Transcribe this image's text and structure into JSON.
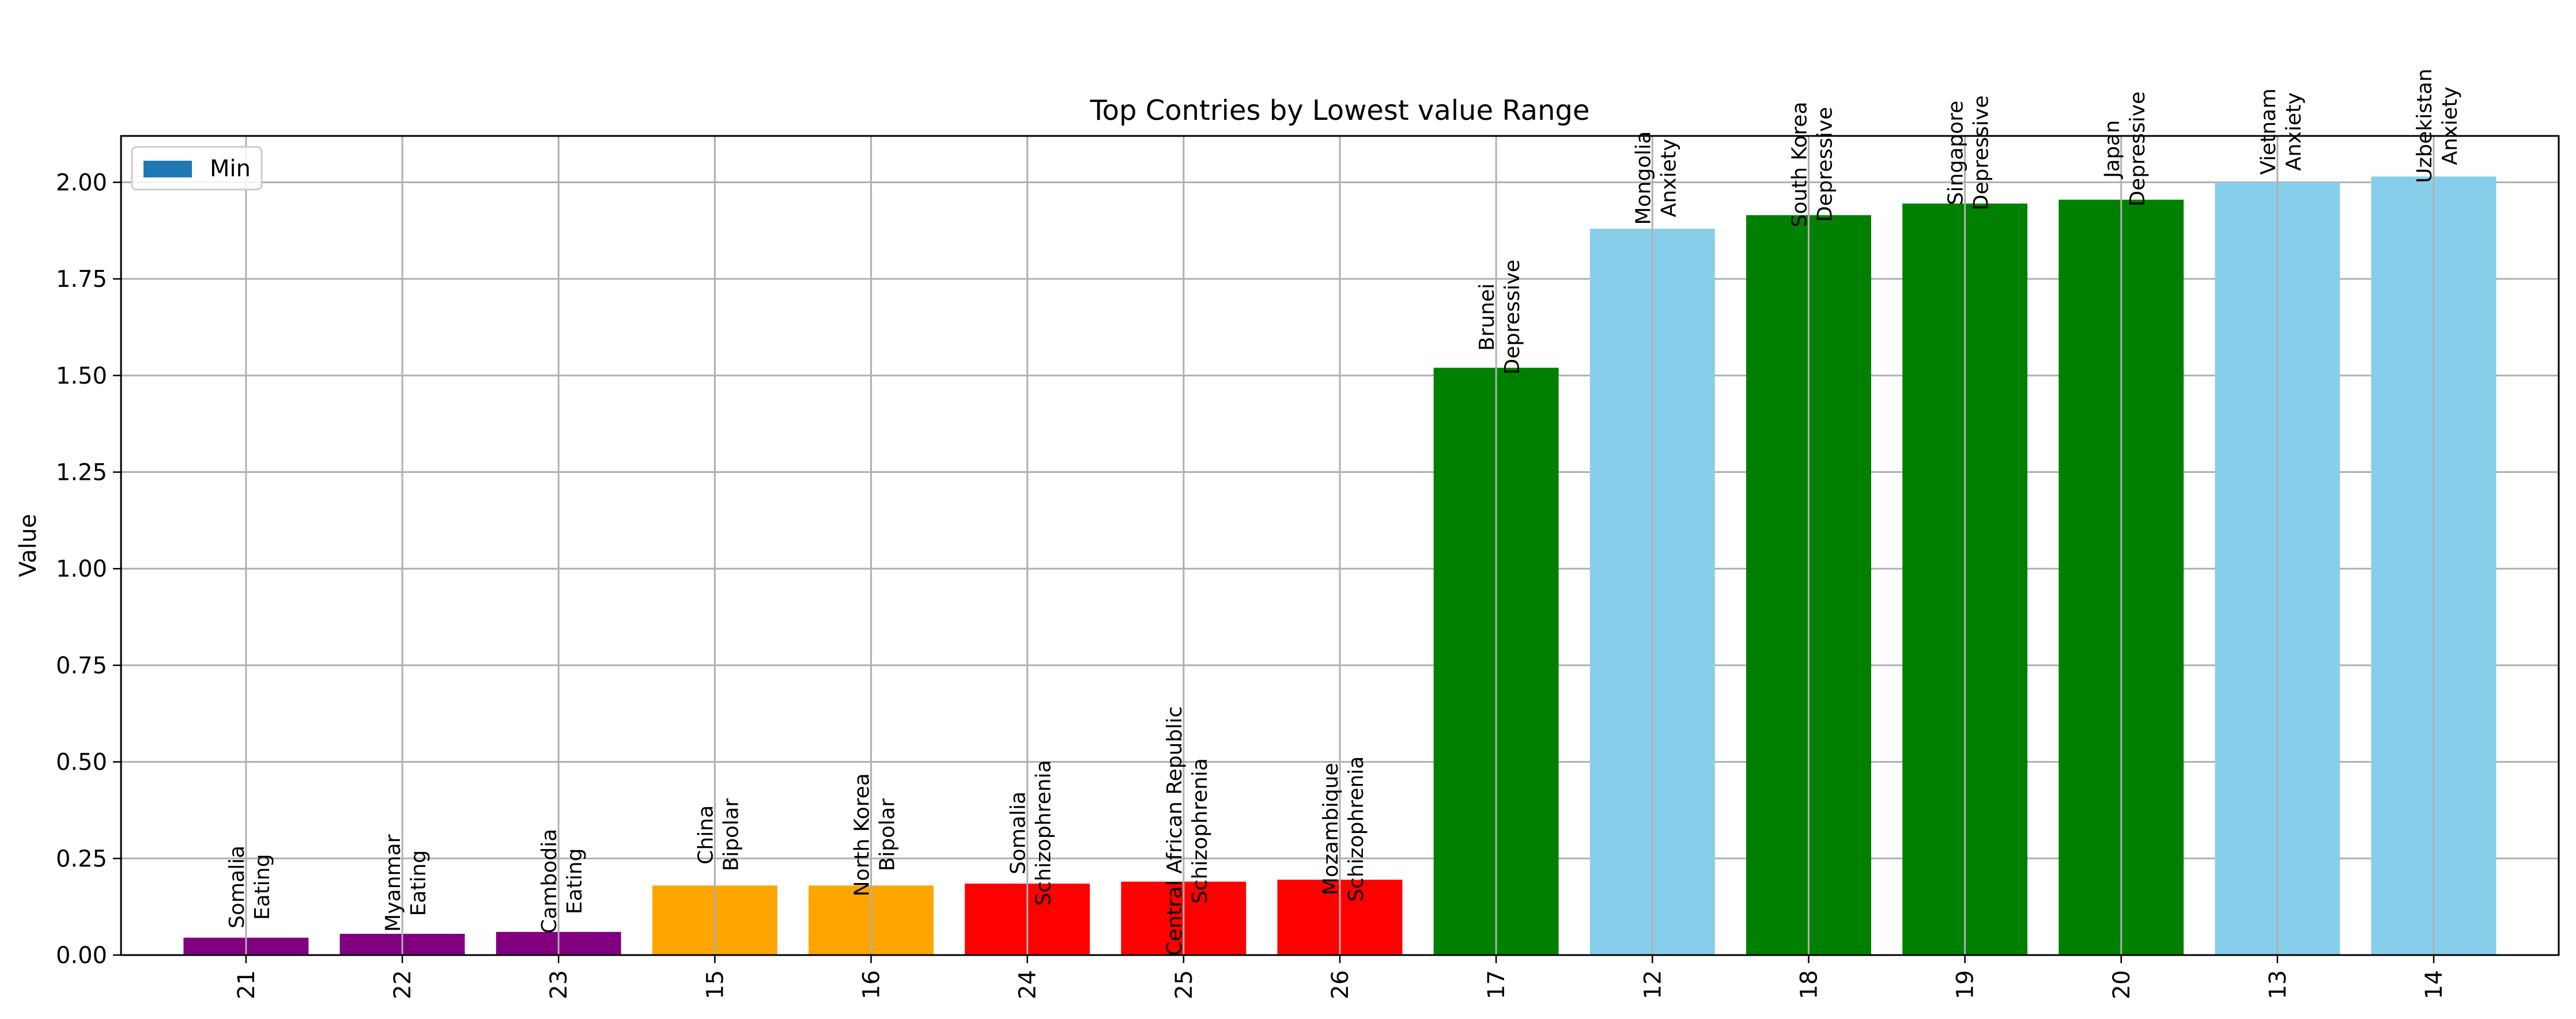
{
  "chart_data": {
    "type": "bar",
    "title": "Top Contries by Lowest value Range",
    "xlabel": "",
    "ylabel": "Value",
    "ylim": [
      0,
      2.12
    ],
    "yticks": [
      "0.00",
      "0.25",
      "0.50",
      "0.75",
      "1.00",
      "1.25",
      "1.50",
      "1.75",
      "2.00"
    ],
    "grid": true,
    "legend": {
      "placement": "top-left",
      "entries": [
        {
          "label": "Min",
          "color": "#1f77b4"
        }
      ]
    },
    "categories": [
      "21",
      "22",
      "23",
      "15",
      "16",
      "24",
      "25",
      "26",
      "17",
      "12",
      "18",
      "19",
      "20",
      "13",
      "14"
    ],
    "values": [
      0.045,
      0.055,
      0.06,
      0.18,
      0.18,
      0.185,
      0.19,
      0.195,
      1.52,
      1.88,
      1.915,
      1.945,
      1.955,
      2.0,
      2.015
    ],
    "colors": [
      "#800080",
      "#800080",
      "#800080",
      "#ffa500",
      "#ffa500",
      "#ff0000",
      "#ff0000",
      "#ff0000",
      "#008000",
      "#87ceeb",
      "#008000",
      "#008000",
      "#008000",
      "#87ceeb",
      "#87ceeb"
    ],
    "annotations": [
      {
        "line1": "Somalia",
        "line2": "Eating"
      },
      {
        "line1": "Myanmar",
        "line2": "Eating"
      },
      {
        "line1": "Cambodia",
        "line2": "Eating"
      },
      {
        "line1": "China",
        "line2": "Bipolar"
      },
      {
        "line1": "North Korea",
        "line2": "Bipolar"
      },
      {
        "line1": "Somalia",
        "line2": "Schizophrenia"
      },
      {
        "line1": "Central African Republic",
        "line2": "Schizophrenia"
      },
      {
        "line1": "Mozambique",
        "line2": "Schizophrenia"
      },
      {
        "line1": "Brunei",
        "line2": "Depressive"
      },
      {
        "line1": "Mongolia",
        "line2": "Anxiety"
      },
      {
        "line1": "South Korea",
        "line2": "Depressive"
      },
      {
        "line1": "Singapore",
        "line2": "Depressive"
      },
      {
        "line1": "Japan",
        "line2": "Depressive"
      },
      {
        "line1": "Vietnam",
        "line2": "Anxiety"
      },
      {
        "line1": "Uzbekistan",
        "line2": "Anxiety"
      }
    ]
  }
}
